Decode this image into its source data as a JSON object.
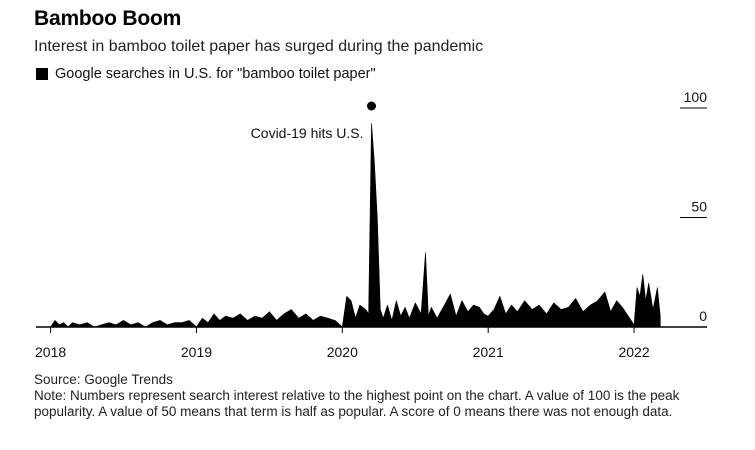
{
  "title": "Bamboo Boom",
  "subtitle": "Interest in bamboo toilet paper has surged during the pandemic",
  "legend_label": "Google searches in U.S. for \"bamboo toilet paper\"",
  "source": "Source: Google Trends",
  "note": "Note: Numbers represent search interest relative to the highest point on the chart. A value of 100 is the peak popularity. A value of 50 means that term is half as popular. A score of 0 means there was not enough data.",
  "colors": {
    "fill": "#000000",
    "axis": "#000000",
    "text": "#111111"
  },
  "chart_data": {
    "type": "area",
    "title": "Bamboo Boom",
    "subtitle": "Interest in bamboo toilet paper has surged during the pandemic",
    "xlabel": "",
    "ylabel": "",
    "x_ticks": [
      "2018",
      "2019",
      "2020",
      "2021",
      "2022"
    ],
    "y_ticks": [
      0,
      50,
      100
    ],
    "xlim": [
      2017.9,
      2022.5
    ],
    "ylim": [
      0,
      100
    ],
    "grid": false,
    "legend_position": "top-left",
    "annotations": [
      {
        "text": "Covid-19 hits U.S.",
        "x": 2020.2,
        "y": 100
      }
    ],
    "series": [
      {
        "name": "Google searches in U.S. for \"bamboo toilet paper\"",
        "x": [
          2018.0,
          2018.03,
          2018.06,
          2018.09,
          2018.12,
          2018.15,
          2018.2,
          2018.25,
          2018.3,
          2018.35,
          2018.4,
          2018.45,
          2018.5,
          2018.55,
          2018.6,
          2018.65,
          2018.7,
          2018.75,
          2018.8,
          2018.85,
          2018.9,
          2018.95,
          2019.0,
          2019.04,
          2019.08,
          2019.12,
          2019.16,
          2019.2,
          2019.25,
          2019.3,
          2019.35,
          2019.4,
          2019.45,
          2019.5,
          2019.55,
          2019.6,
          2019.65,
          2019.7,
          2019.75,
          2019.8,
          2019.85,
          2019.9,
          2019.95,
          2020.0,
          2020.03,
          2020.06,
          2020.09,
          2020.12,
          2020.16,
          2020.18,
          2020.2,
          2020.22,
          2020.24,
          2020.26,
          2020.28,
          2020.31,
          2020.34,
          2020.37,
          2020.4,
          2020.43,
          2020.46,
          2020.5,
          2020.54,
          2020.57,
          2020.59,
          2020.61,
          2020.65,
          2020.7,
          2020.74,
          2020.78,
          2020.82,
          2020.86,
          2020.9,
          2020.94,
          2020.97,
          2021.0,
          2021.04,
          2021.08,
          2021.12,
          2021.16,
          2021.2,
          2021.25,
          2021.3,
          2021.35,
          2021.4,
          2021.45,
          2021.5,
          2021.55,
          2021.6,
          2021.65,
          2021.7,
          2021.75,
          2021.8,
          2021.84,
          2021.88,
          2021.92,
          2021.96,
          2022.0,
          2022.02,
          2022.04,
          2022.06,
          2022.08,
          2022.1,
          2022.13,
          2022.16,
          2022.18
        ],
        "y": [
          0,
          3,
          1,
          2,
          0,
          2,
          1,
          2,
          0,
          1,
          2,
          1,
          3,
          1,
          2,
          0,
          2,
          3,
          1,
          2,
          2,
          3,
          0,
          4,
          2,
          6,
          3,
          5,
          4,
          6,
          3,
          5,
          4,
          7,
          3,
          6,
          8,
          4,
          6,
          3,
          5,
          4,
          3,
          0,
          14,
          12,
          4,
          10,
          8,
          6,
          93,
          75,
          50,
          8,
          4,
          10,
          3,
          12,
          5,
          9,
          4,
          11,
          6,
          34,
          5,
          9,
          4,
          10,
          15,
          5,
          12,
          7,
          10,
          9,
          6,
          5,
          8,
          14,
          6,
          10,
          7,
          12,
          8,
          10,
          6,
          11,
          8,
          9,
          13,
          7,
          10,
          12,
          16,
          7,
          12,
          9,
          5,
          1,
          18,
          14,
          24,
          12,
          20,
          8,
          18,
          5
        ]
      }
    ]
  }
}
